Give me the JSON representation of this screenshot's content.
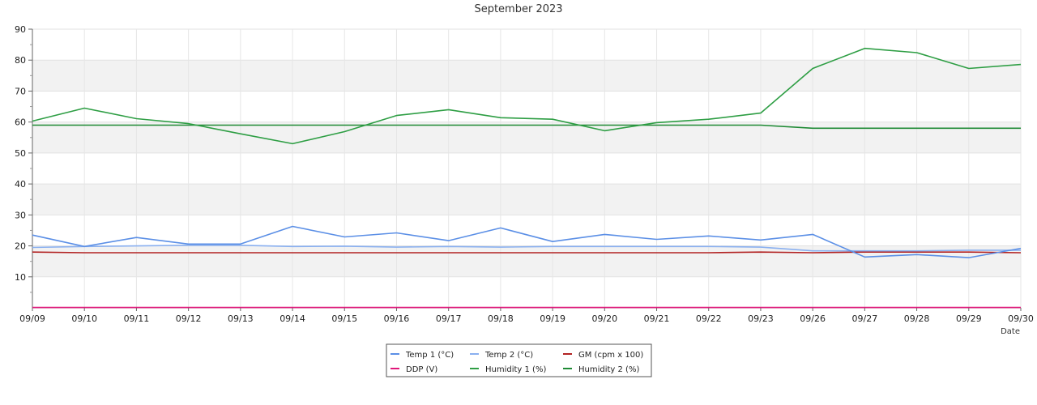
{
  "chart_data": {
    "type": "line",
    "title": "September 2023",
    "xlabel": "Date",
    "ylabel": "",
    "ylim": [
      0,
      90
    ],
    "yticks": [
      10,
      20,
      30,
      40,
      50,
      60,
      70,
      80,
      90
    ],
    "grid": true,
    "legend_position": "bottom-center",
    "categories": [
      "09/09",
      "09/10",
      "09/11",
      "09/12",
      "09/13",
      "09/14",
      "09/15",
      "09/16",
      "09/17",
      "09/18",
      "09/19",
      "09/20",
      "09/21",
      "09/22",
      "09/23",
      "09/26",
      "09/27",
      "09/28",
      "09/29",
      "09/30"
    ],
    "series": [
      {
        "name": "Temp 1 (°C)",
        "color": "#5b8fe6",
        "values": [
          23.5,
          19.8,
          22.7,
          20.6,
          20.6,
          26.3,
          22.9,
          24.2,
          21.7,
          25.8,
          21.4,
          23.7,
          22.1,
          23.2,
          21.9,
          23.7,
          16.4,
          17.2,
          16.2,
          19.2
        ]
      },
      {
        "name": "Temp 2 (°C)",
        "color": "#8ab0f0",
        "values": [
          19.5,
          19.8,
          20.0,
          20.2,
          20.2,
          19.8,
          19.9,
          19.6,
          19.8,
          19.6,
          19.8,
          19.8,
          19.8,
          19.8,
          19.6,
          18.4,
          18.4,
          18.4,
          18.6,
          18.6
        ]
      },
      {
        "name": "GM (cpm x 100)",
        "color": "#b22222",
        "values": [
          18.0,
          17.8,
          17.8,
          17.8,
          17.8,
          17.8,
          17.8,
          17.8,
          17.8,
          17.8,
          17.8,
          17.8,
          17.8,
          17.8,
          18.0,
          17.8,
          18.0,
          18.0,
          18.0,
          17.8
        ]
      },
      {
        "name": "DDP (V)",
        "color": "#e0177a",
        "values": [
          0.1,
          0.1,
          0.1,
          0.1,
          0.1,
          0.1,
          0.1,
          0.1,
          0.1,
          0.1,
          0.1,
          0.1,
          0.1,
          0.1,
          0.1,
          0.1,
          0.1,
          0.1,
          0.1,
          0.1
        ]
      },
      {
        "name": "Humidity 1 (%)",
        "color": "#2e9e44",
        "values": [
          60.3,
          64.5,
          61.1,
          59.5,
          56.2,
          53.0,
          56.9,
          62.1,
          64.0,
          61.4,
          60.9,
          57.2,
          59.8,
          60.9,
          62.9,
          77.3,
          83.8,
          82.4,
          77.3,
          78.6
        ]
      },
      {
        "name": "Humidity 2 (%)",
        "color": "#1e8a34",
        "values": [
          59.0,
          59.0,
          59.0,
          59.0,
          59.0,
          59.0,
          59.0,
          59.0,
          59.0,
          59.0,
          59.0,
          59.0,
          59.0,
          59.0,
          59.0,
          58.0,
          58.0,
          58.0,
          58.0,
          58.0
        ]
      }
    ]
  }
}
